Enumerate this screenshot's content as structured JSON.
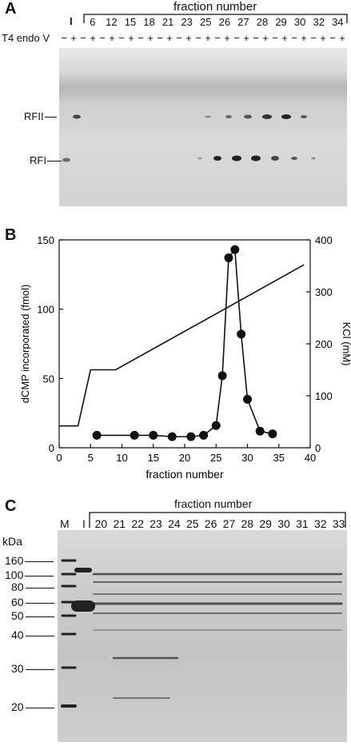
{
  "panel_a": {
    "letter": "A",
    "header": "fraction number",
    "first_lane": "I",
    "fractions": [
      "6",
      "12",
      "15",
      "18",
      "21",
      "23",
      "25",
      "26",
      "27",
      "28",
      "29",
      "30",
      "32",
      "34"
    ],
    "treatment_label": "T4 endo V",
    "signs": [
      "−",
      "+",
      "−",
      "+",
      "−",
      "+",
      "−",
      "+",
      "−",
      "+",
      "−",
      "+",
      "−",
      "+",
      "−",
      "+",
      "−",
      "+",
      "−",
      "+",
      "−",
      "+",
      "−",
      "+",
      "−",
      "+",
      "−",
      "+",
      "−",
      "+"
    ],
    "bands": [
      "RFII",
      "RFI"
    ]
  },
  "panel_b": {
    "letter": "B"
  },
  "chart_data": {
    "type": "scatter",
    "xlabel": "fraction number",
    "ylabel": "dCMP incorporated (fmol)",
    "y2label": "KCl (mM)",
    "xlim": [
      0,
      40
    ],
    "ylim": [
      0,
      150
    ],
    "y2lim": [
      0,
      400
    ],
    "xticks": [
      0,
      5,
      10,
      15,
      20,
      25,
      30,
      35,
      40
    ],
    "yticks": [
      0,
      50,
      100,
      150
    ],
    "y2ticks": [
      0,
      100,
      200,
      300,
      400
    ],
    "grid": false,
    "series": [
      {
        "axis": "left",
        "marker": "circle",
        "x": [
          6,
          12,
          15,
          18,
          21,
          23,
          25,
          26,
          27,
          28,
          29,
          30,
          32,
          34
        ],
        "y": [
          9,
          9,
          9,
          8,
          8,
          9,
          16,
          52,
          137,
          143,
          82,
          35,
          12,
          10
        ]
      },
      {
        "axis": "right",
        "marker": "none",
        "x": [
          0,
          3,
          5,
          9,
          39
        ],
        "y": [
          42,
          42,
          150,
          150,
          352
        ]
      }
    ]
  },
  "panel_c": {
    "letter": "C",
    "header": "fraction number",
    "lane_m": "M",
    "lane_i": "I",
    "fractions": [
      "20",
      "21",
      "22",
      "23",
      "24",
      "25",
      "26",
      "27",
      "28",
      "29",
      "30",
      "31",
      "32",
      "33"
    ],
    "unit": "kDa",
    "markers": [
      "160",
      "100",
      "80",
      "60",
      "50",
      "40",
      "30",
      "20"
    ]
  }
}
